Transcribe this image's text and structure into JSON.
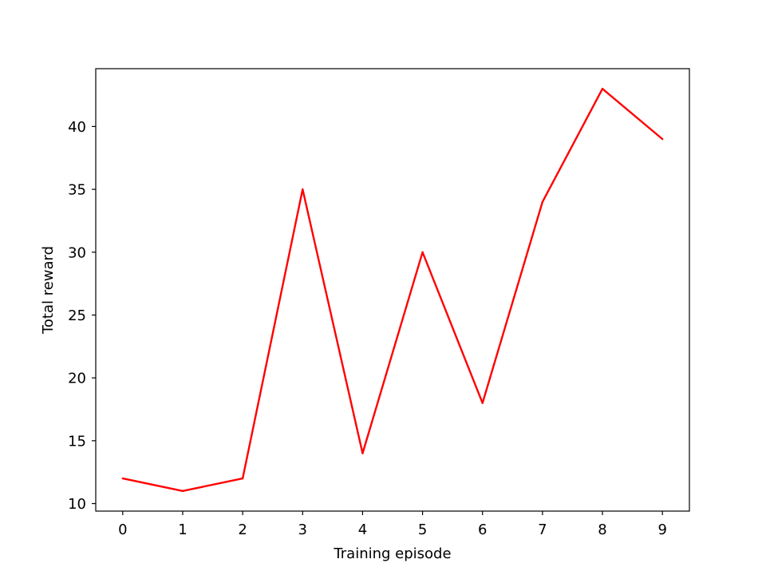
{
  "chart_data": {
    "type": "line",
    "title": "",
    "xlabel": "Training episode",
    "ylabel": "Total reward",
    "x": [
      0,
      1,
      2,
      3,
      4,
      5,
      6,
      7,
      8,
      9
    ],
    "series": [
      {
        "values": [
          12,
          11,
          12,
          35,
          14,
          30,
          18,
          34,
          43,
          39
        ],
        "color": "#ff0000"
      }
    ],
    "xlim": [
      -0.45,
      9.45
    ],
    "ylim": [
      9.4,
      44.6
    ],
    "xticks": [
      0,
      1,
      2,
      3,
      4,
      5,
      6,
      7,
      8,
      9
    ],
    "yticks": [
      10,
      15,
      20,
      25,
      30,
      35,
      40
    ],
    "grid": false,
    "legend": false
  }
}
